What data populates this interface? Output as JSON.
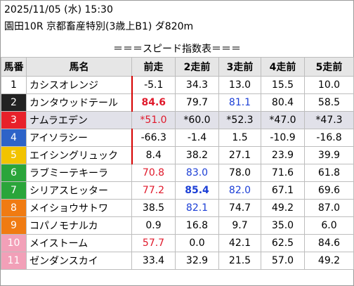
{
  "header": {
    "datetime": "2025/11/05 (水) 15:30",
    "race": "園田10R 京都畜産特別(3歳上B1) ダ820m"
  },
  "table_title": "＝＝＝スピード指数表＝＝＝",
  "columns": [
    "馬番",
    "馬名",
    "前走",
    "2走前",
    "3走前",
    "4走前",
    "5走前"
  ],
  "colors": {
    "waku": [
      "#ffffff",
      "#222222",
      "#e8212a",
      "#2d63c8",
      "#f2c300",
      "#2aa53a",
      "#f07b12",
      "#f07b12",
      "#f2a0b8",
      "#f2a0b8"
    ],
    "highlight_red": "#e0192b",
    "highlight_blue": "#1c3fd6"
  },
  "rows": [
    {
      "no": "1",
      "name": "カシスオレンジ",
      "vals": [
        "-5.1",
        "34.3",
        "13.0",
        "15.5",
        "10.0"
      ],
      "bg": "#ffffff",
      "fg": "#000000",
      "mark": true
    },
    {
      "no": "2",
      "name": "カンタウッドテール",
      "vals": [
        "84.6",
        "79.7",
        "81.1",
        "80.4",
        "58.5"
      ],
      "bg": "#222222",
      "fg": "#ffffff",
      "mark": true,
      "styles": [
        "red bold",
        "",
        "blue",
        "",
        ""
      ]
    },
    {
      "no": "3",
      "name": "ナムラエデン",
      "vals": [
        "*51.0",
        "*60.0",
        "*52.3",
        "*47.0",
        "*47.3"
      ],
      "bg": "#e8212a",
      "fg": "#ffffff",
      "mark": false,
      "gray": true,
      "styles": [
        "red",
        "",
        "",
        "",
        ""
      ]
    },
    {
      "no": "4",
      "name": "アイソラシー",
      "vals": [
        "-66.3",
        "-1.4",
        "1.5",
        "-10.9",
        "-16.8"
      ],
      "bg": "#2d63c8",
      "fg": "#ffffff",
      "mark": true
    },
    {
      "no": "5",
      "name": "エイシングリュック",
      "vals": [
        "8.4",
        "38.2",
        "27.1",
        "23.9",
        "39.9"
      ],
      "bg": "#f2c300",
      "fg": "#ffffff",
      "mark": true
    },
    {
      "no": "6",
      "name": "ラブミーテキーラ",
      "vals": [
        "70.8",
        "83.0",
        "78.0",
        "71.6",
        "61.8"
      ],
      "bg": "#2aa53a",
      "fg": "#ffffff",
      "mark": false,
      "styles": [
        "red",
        "blue",
        "",
        "",
        ""
      ]
    },
    {
      "no": "7",
      "name": "シリアスヒッター",
      "vals": [
        "77.2",
        "85.4",
        "82.0",
        "67.1",
        "69.6"
      ],
      "bg": "#2aa53a",
      "fg": "#ffffff",
      "mark": false,
      "styles": [
        "red",
        "blue bold",
        "blue",
        "",
        ""
      ]
    },
    {
      "no": "8",
      "name": "メイショウサトワ",
      "vals": [
        "38.5",
        "82.1",
        "74.7",
        "49.2",
        "87.0"
      ],
      "bg": "#f07b12",
      "fg": "#ffffff",
      "mark": false,
      "styles": [
        "",
        "blue",
        "",
        "",
        ""
      ]
    },
    {
      "no": "9",
      "name": "コパノモナルカ",
      "vals": [
        "0.9",
        "16.8",
        "9.7",
        "35.0",
        "6.0"
      ],
      "bg": "#f07b12",
      "fg": "#ffffff",
      "mark": false
    },
    {
      "no": "10",
      "name": "メイストーム",
      "vals": [
        "57.7",
        "0.0",
        "42.1",
        "62.5",
        "84.6"
      ],
      "bg": "#f2a0b8",
      "fg": "#ffffff",
      "mark": false,
      "styles": [
        "red",
        "",
        "",
        "",
        ""
      ]
    },
    {
      "no": "11",
      "name": "ゼンダンスカイ",
      "vals": [
        "33.4",
        "32.9",
        "21.5",
        "57.0",
        "49.2"
      ],
      "bg": "#f2a0b8",
      "fg": "#ffffff",
      "mark": false
    }
  ]
}
